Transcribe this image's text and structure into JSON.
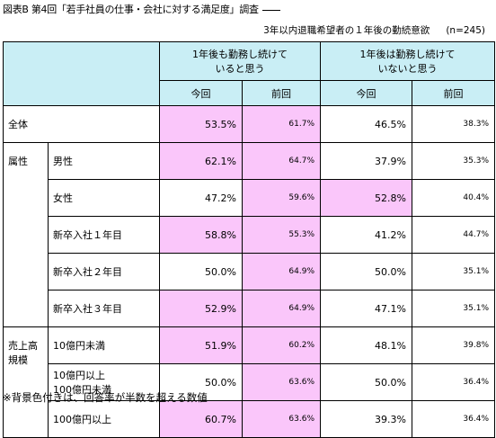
{
  "title": "図表B  第4回「若手社員の仕事・会社に対する満足度」調査",
  "subtitle": "3年以内退職希望者の１年後の勤続意欲",
  "n_label": "(n=245)",
  "footnote": "※背景色付きは、回答率が半数を超える数値",
  "headers": {
    "group1": "1年後も勤務し続けて\nいると思う",
    "group2": "1年後は勤務し続けて\nいないと思う",
    "current": "今回",
    "previous": "前回"
  },
  "colors": {
    "header": "#c9eef5",
    "highlight": "#fac6fa"
  },
  "chart_data": {
    "type": "table",
    "columns": [
      "1年後も勤務し続けていると思う 今回",
      "1年後も勤務し続けていると思う 前回",
      "1年後は勤務し続けていないと思う 今回",
      "1年後は勤務し続けていないと思う 前回"
    ],
    "rows": [
      {
        "group": "全体",
        "label": "",
        "values": [
          "53.5%",
          "61.7%",
          "46.5%",
          "38.3%"
        ],
        "highlight": [
          true,
          true,
          false,
          false
        ]
      },
      {
        "group": "属性",
        "label": "男性",
        "values": [
          "62.1%",
          "64.7%",
          "37.9%",
          "35.3%"
        ],
        "highlight": [
          true,
          true,
          false,
          false
        ]
      },
      {
        "group": "",
        "label": "女性",
        "values": [
          "47.2%",
          "59.6%",
          "52.8%",
          "40.4%"
        ],
        "highlight": [
          false,
          true,
          true,
          false
        ]
      },
      {
        "group": "",
        "label": "新卒入社１年目",
        "values": [
          "58.8%",
          "55.3%",
          "41.2%",
          "44.7%"
        ],
        "highlight": [
          true,
          true,
          false,
          false
        ]
      },
      {
        "group": "",
        "label": "新卒入社２年目",
        "values": [
          "50.0%",
          "64.9%",
          "50.0%",
          "35.1%"
        ],
        "highlight": [
          false,
          true,
          false,
          false
        ]
      },
      {
        "group": "",
        "label": "新卒入社３年目",
        "values": [
          "52.9%",
          "64.9%",
          "47.1%",
          "35.1%"
        ],
        "highlight": [
          true,
          true,
          false,
          false
        ]
      },
      {
        "group": "売上高\n規模",
        "label": "10億円未満",
        "values": [
          "51.9%",
          "60.2%",
          "48.1%",
          "39.8%"
        ],
        "highlight": [
          true,
          true,
          false,
          false
        ]
      },
      {
        "group": "",
        "label": "10億円以上\n100億円未満",
        "values": [
          "50.0%",
          "63.6%",
          "50.0%",
          "36.4%"
        ],
        "highlight": [
          false,
          true,
          false,
          false
        ]
      },
      {
        "group": "",
        "label": "100億円以上",
        "values": [
          "60.7%",
          "63.6%",
          "39.3%",
          "36.4%"
        ],
        "highlight": [
          true,
          true,
          false,
          false
        ]
      }
    ]
  }
}
